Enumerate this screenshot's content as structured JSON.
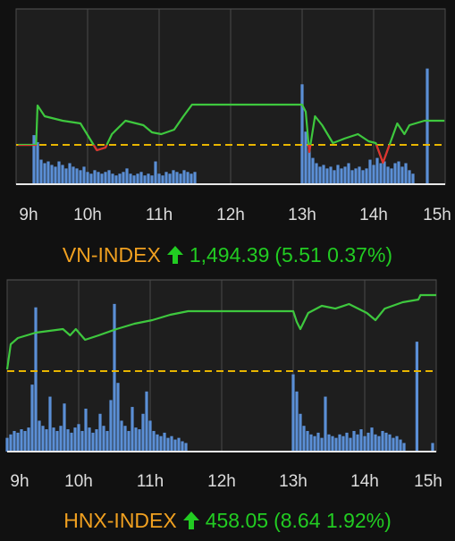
{
  "chart_data": [
    {
      "type": "line",
      "title": "VN-INDEX",
      "value_label": "1,494.39",
      "change_label": "(5.51 0.37%)",
      "title_color": "#f0a020",
      "value_color": "#22cc22",
      "xlim": [
        9,
        15
      ],
      "xticks": [
        {
          "value": 9,
          "label": "9h"
        },
        {
          "value": 10,
          "label": "10h"
        },
        {
          "value": 11,
          "label": "11h"
        },
        {
          "value": 12,
          "label": "12h"
        },
        {
          "value": 13,
          "label": "13h"
        },
        {
          "value": 14,
          "label": "14h"
        },
        {
          "value": 15,
          "label": "15h"
        }
      ],
      "ylim": [
        1479.9,
        1519.9
      ],
      "y2lim": [
        0,
        100
      ],
      "grid": true,
      "reference_line": {
        "value": 1488.88,
        "color": "#e8b500"
      },
      "series": [
        {
          "type": "bar",
          "axis": "y2",
          "color": "#5b8fd6",
          "x": [
            9.25,
            9.3,
            9.35,
            9.4,
            9.45,
            9.5,
            9.55,
            9.6,
            9.65,
            9.7,
            9.75,
            9.8,
            9.85,
            9.9,
            9.95,
            10.0,
            10.05,
            10.1,
            10.15,
            10.2,
            10.25,
            10.3,
            10.35,
            10.4,
            10.45,
            10.5,
            10.55,
            10.6,
            10.65,
            10.7,
            10.75,
            10.8,
            10.85,
            10.9,
            10.95,
            11.0,
            11.05,
            11.1,
            11.15,
            11.2,
            11.25,
            11.3,
            11.35,
            11.4,
            11.45,
            11.5,
            13.0,
            13.05,
            13.1,
            13.15,
            13.2,
            13.25,
            13.3,
            13.35,
            13.4,
            13.45,
            13.5,
            13.55,
            13.6,
            13.65,
            13.7,
            13.75,
            13.8,
            13.85,
            13.9,
            13.95,
            14.0,
            14.05,
            14.1,
            14.15,
            14.2,
            14.25,
            14.3,
            14.35,
            14.4,
            14.45,
            14.5,
            14.55,
            14.75
          ],
          "values": [
            28,
            24,
            14,
            12,
            13,
            11,
            10,
            13,
            11,
            9,
            12,
            10,
            9,
            8,
            10,
            7,
            6,
            8,
            7,
            6,
            7,
            8,
            6,
            5,
            6,
            7,
            9,
            6,
            5,
            6,
            7,
            5,
            6,
            5,
            13,
            6,
            5,
            7,
            6,
            8,
            7,
            6,
            8,
            7,
            6,
            7,
            57,
            30,
            20,
            15,
            12,
            10,
            11,
            9,
            10,
            8,
            11,
            9,
            10,
            12,
            8,
            9,
            10,
            8,
            9,
            14,
            11,
            15,
            12,
            13,
            10,
            9,
            12,
            13,
            10,
            12,
            8,
            6,
            66
          ]
        },
        {
          "type": "line",
          "color": "#3ec83e",
          "below_color": "#e03030",
          "x": [
            9.03,
            9.28,
            9.3,
            9.4,
            9.65,
            9.9,
            10.03,
            10.13,
            10.25,
            10.34,
            10.53,
            10.78,
            10.9,
            11.03,
            11.21,
            11.34,
            11.46,
            13.0,
            13.05,
            13.1,
            13.18,
            13.28,
            13.43,
            13.59,
            13.78,
            13.93,
            14.03,
            14.13,
            14.23,
            14.33,
            14.43,
            14.5,
            14.71,
            14.99
          ],
          "values": [
            1488.88,
            1488.88,
            1497.86,
            1495.41,
            1494.39,
            1493.78,
            1490.31,
            1487.66,
            1488.27,
            1491.33,
            1494.39,
            1493.37,
            1491.74,
            1491.33,
            1492.35,
            1495.41,
            1498.06,
            1498.06,
            1496.43,
            1487.25,
            1495.41,
            1493.37,
            1489.29,
            1490.31,
            1491.33,
            1489.7,
            1489.29,
            1484.8,
            1489.29,
            1493.78,
            1491.33,
            1493.37,
            1494.39,
            1494.39
          ]
        }
      ]
    },
    {
      "type": "line",
      "title": "HNX-INDEX",
      "value_label": "458.05",
      "change_label": "(8.64 1.92%)",
      "title_color": "#f0a020",
      "value_color": "#22cc22",
      "xlim": [
        9,
        15
      ],
      "xticks": [
        {
          "value": 9,
          "label": "9h"
        },
        {
          "value": 10,
          "label": "10h"
        },
        {
          "value": 11,
          "label": "11h"
        },
        {
          "value": 12,
          "label": "12h"
        },
        {
          "value": 13,
          "label": "13h"
        },
        {
          "value": 14,
          "label": "14h"
        },
        {
          "value": 15,
          "label": "15h"
        }
      ],
      "ylim": [
        440.26,
        459.78
      ],
      "y2lim": [
        0,
        100
      ],
      "grid": true,
      "reference_line": {
        "value": 449.41,
        "color": "#e8b500"
      },
      "series": [
        {
          "type": "bar",
          "axis": "y2",
          "color": "#5b8fd6",
          "x": [
            9.0,
            9.05,
            9.1,
            9.15,
            9.2,
            9.25,
            9.3,
            9.35,
            9.4,
            9.45,
            9.5,
            9.55,
            9.6,
            9.65,
            9.7,
            9.75,
            9.8,
            9.85,
            9.9,
            9.95,
            10.0,
            10.05,
            10.1,
            10.15,
            10.2,
            10.25,
            10.3,
            10.35,
            10.4,
            10.45,
            10.5,
            10.55,
            10.6,
            10.65,
            10.7,
            10.75,
            10.8,
            10.85,
            10.9,
            10.95,
            11.0,
            11.05,
            11.1,
            11.15,
            11.2,
            11.25,
            11.3,
            11.35,
            11.4,
            11.45,
            11.5,
            13.0,
            13.05,
            13.1,
            13.15,
            13.2,
            13.25,
            13.3,
            13.35,
            13.4,
            13.45,
            13.5,
            13.55,
            13.6,
            13.65,
            13.7,
            13.75,
            13.8,
            13.85,
            13.9,
            13.95,
            14.0,
            14.05,
            14.1,
            14.15,
            14.2,
            14.25,
            14.3,
            14.35,
            14.4,
            14.45,
            14.5,
            14.55,
            14.73,
            14.95
          ],
          "values": [
            8,
            10,
            12,
            11,
            13,
            12,
            14,
            39,
            84,
            18,
            15,
            13,
            32,
            14,
            12,
            15,
            28,
            13,
            11,
            14,
            16,
            12,
            25,
            14,
            11,
            13,
            22,
            15,
            12,
            30,
            86,
            40,
            18,
            15,
            12,
            26,
            14,
            13,
            22,
            35,
            18,
            12,
            10,
            9,
            11,
            8,
            9,
            7,
            8,
            6,
            5,
            45,
            35,
            22,
            15,
            12,
            10,
            9,
            11,
            8,
            32,
            10,
            9,
            8,
            10,
            9,
            11,
            8,
            12,
            10,
            13,
            9,
            11,
            14,
            10,
            9,
            12,
            11,
            10,
            8,
            9,
            7,
            5,
            64,
            5
          ]
        },
        {
          "type": "line",
          "color": "#3ec83e",
          "below_color": "#e03030",
          "x": [
            9.0,
            9.05,
            9.15,
            9.4,
            9.78,
            9.88,
            9.96,
            10.09,
            10.28,
            10.53,
            10.78,
            11.03,
            11.28,
            11.53,
            13.0,
            13.05,
            13.1,
            13.21,
            13.4,
            13.59,
            13.78,
            14.03,
            14.15,
            14.28,
            14.53,
            14.75,
            14.78,
            15.0
          ],
          "values": [
            449.61,
            452.46,
            453.17,
            453.78,
            454.19,
            453.48,
            454.19,
            452.97,
            453.48,
            454.19,
            454.8,
            455.2,
            455.81,
            456.22,
            456.22,
            455.0,
            454.19,
            456.02,
            456.83,
            456.52,
            457.03,
            456.02,
            455.2,
            456.52,
            457.24,
            457.54,
            458.05,
            458.05
          ]
        }
      ]
    }
  ]
}
